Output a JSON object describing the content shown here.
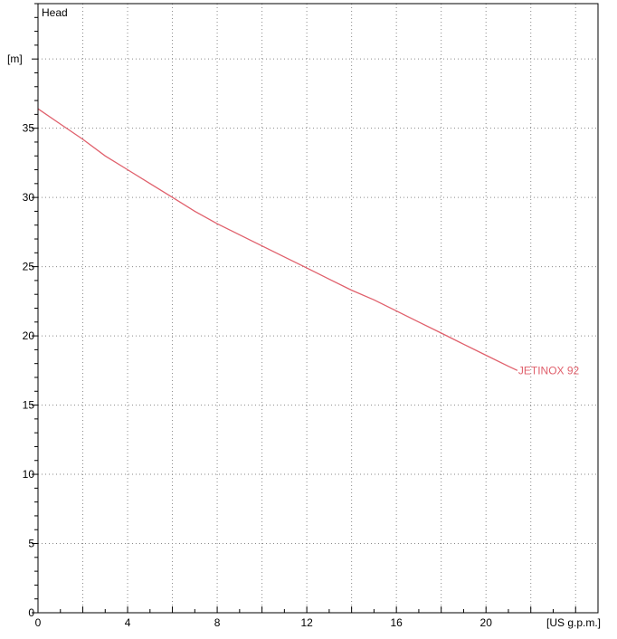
{
  "chart_data": {
    "type": "line",
    "title": "",
    "ylabel_top": "Head",
    "yunit": "[m]",
    "xlabel": "[US g.p.m.]",
    "xlim": [
      0,
      25
    ],
    "ylim": [
      0,
      44
    ],
    "xticks": [
      0,
      4,
      8,
      12,
      16,
      20
    ],
    "yticks": [
      0,
      5,
      10,
      15,
      20,
      25,
      30,
      35
    ],
    "grid": true,
    "series": [
      {
        "name": "JETINOX 92",
        "color": "#e0606c",
        "x": [
          0,
          1,
          2,
          3,
          4,
          5,
          6,
          7,
          8,
          9,
          10,
          11,
          12,
          13,
          14,
          15,
          16,
          17,
          18,
          19,
          20,
          21,
          21.4
        ],
        "y": [
          36.4,
          35.3,
          34.2,
          33.0,
          32.0,
          31.0,
          30.0,
          29.0,
          28.1,
          27.3,
          26.5,
          25.7,
          24.9,
          24.1,
          23.3,
          22.6,
          21.8,
          21.0,
          20.2,
          19.4,
          18.6,
          17.8,
          17.5
        ]
      }
    ]
  }
}
